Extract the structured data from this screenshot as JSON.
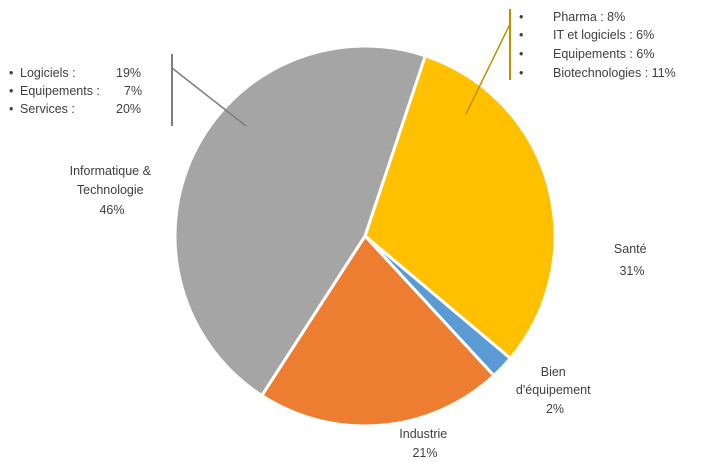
{
  "chart_data": {
    "type": "pie",
    "title": "",
    "slices": [
      {
        "label_lines": [
          "Santé",
          "31%"
        ],
        "value": 31,
        "color": "#FFC000"
      },
      {
        "label_lines": [
          "Bien",
          "d'équipement",
          "2%"
        ],
        "value": 2,
        "color": "#5B9BD5"
      },
      {
        "label_lines": [
          "Industrie",
          "21%"
        ],
        "value": 21,
        "color": "#ED7D31"
      },
      {
        "label_lines": [
          "Informatique &",
          "Technologie",
          "46%"
        ],
        "value": 46,
        "color": "#A5A5A5"
      }
    ],
    "annotations": {
      "informatique": {
        "items": [
          {
            "bullet": "•",
            "name": "Logiciels :",
            "value": "19%"
          },
          {
            "bullet": "•",
            "name": "Equipements :",
            "value": "7%"
          },
          {
            "bullet": "•",
            "name": "Services :",
            "value": "20%"
          }
        ],
        "line_color": "#7F7F7F"
      },
      "sante": {
        "items": [
          {
            "bullet": "•",
            "text": "Pharma : 8%"
          },
          {
            "bullet": "•",
            "text": "IT et logiciels : 6%"
          },
          {
            "bullet": "•",
            "text": "Equipements : 6%"
          },
          {
            "bullet": "•",
            "text": "Biotechnologies : 11%"
          }
        ],
        "line_color": "#BF9000"
      }
    }
  }
}
